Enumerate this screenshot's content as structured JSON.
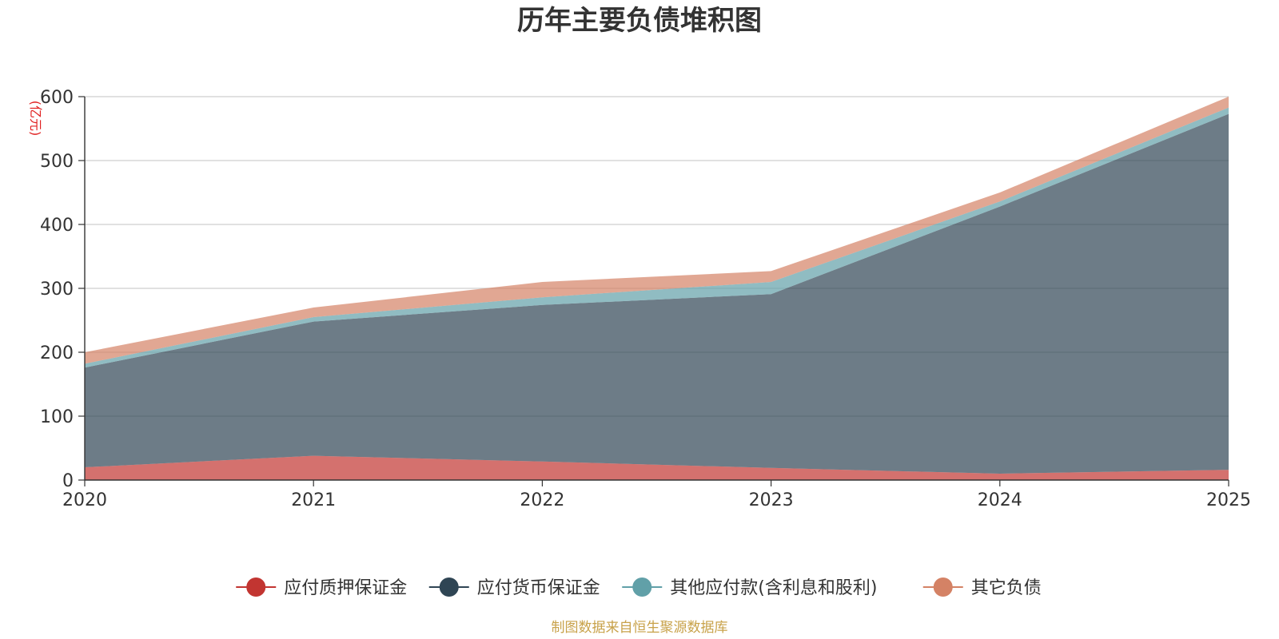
{
  "chart_data": {
    "type": "area",
    "stacked": true,
    "title": "历年主要负债堆积图",
    "ylabel": "(亿元)",
    "xlabel": "",
    "categories": [
      "2020",
      "2021",
      "2022",
      "2023",
      "2024",
      "2025"
    ],
    "ylim": [
      0,
      600
    ],
    "yticks": [
      0,
      100,
      200,
      300,
      400,
      500,
      600
    ],
    "grid": true,
    "legend_position": "bottom-center",
    "series": [
      {
        "name": "应付质押保证金",
        "color": "#c23531",
        "values": [
          20,
          38,
          29,
          19,
          10,
          16
        ]
      },
      {
        "name": "应付货币保证金",
        "color": "#2f4554",
        "values": [
          156,
          210,
          245,
          272,
          418,
          557
        ]
      },
      {
        "name": "其他应付款(含利息和股利)",
        "color": "#61a0a8",
        "values": [
          6,
          7,
          12,
          19,
          8,
          10
        ]
      },
      {
        "name": "其它负债",
        "color": "#d48265",
        "values": [
          18,
          15,
          24,
          17,
          14,
          17
        ]
      }
    ],
    "source": "制图数据来自恒生聚源数据库"
  }
}
